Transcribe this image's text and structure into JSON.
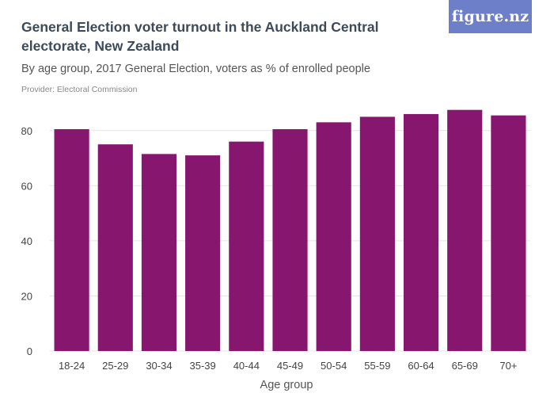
{
  "header": {
    "title": "General Election voter turnout in the Auckland Central electorate, New Zealand",
    "subtitle": "By age group, 2017 General Election, voters as % of enrolled people",
    "provider": "Provider: Electoral Commission",
    "logo_text": "figure.nz"
  },
  "colors": {
    "bar": "#86166e",
    "grid": "#e4e4e4",
    "logo_bg": "#6e7fc9"
  },
  "chart_data": {
    "type": "bar",
    "categories": [
      "18-24",
      "25-29",
      "30-34",
      "35-39",
      "40-44",
      "45-49",
      "50-54",
      "55-59",
      "60-64",
      "65-69",
      "70+"
    ],
    "values": [
      80.5,
      75,
      71.5,
      71,
      76,
      80.5,
      83,
      85,
      86,
      87.5,
      85.5
    ],
    "xlabel": "Age group",
    "ylabel": "",
    "ylim": [
      0,
      90
    ],
    "yticks": [
      0,
      20,
      40,
      60,
      80
    ],
    "grid": true
  }
}
